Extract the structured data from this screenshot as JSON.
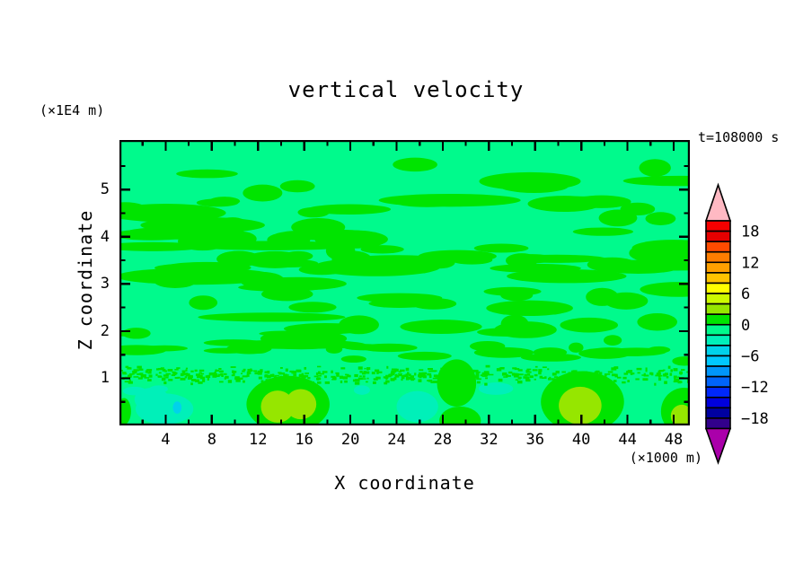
{
  "chart_data": {
    "type": "heatmap",
    "title": "vertical velocity",
    "timestamp": "t=108000 s",
    "xlabel": "X coordinate",
    "x_unit": "(×1000 m)",
    "xlim": [
      0,
      49.4
    ],
    "x_major_ticks": [
      4,
      8,
      12,
      16,
      20,
      24,
      28,
      32,
      36,
      40,
      44,
      48
    ],
    "x_minor_step": 2,
    "ylabel": "Z coordinate",
    "y_unit": "(×1E4 m)",
    "ylim": [
      0,
      6.05
    ],
    "y_major_ticks": [
      1,
      2,
      3,
      4,
      5
    ],
    "y_minor_step": 0.5,
    "grid": false,
    "legend_position": "right-colorbar",
    "colorbar": {
      "level_max": 20,
      "level_min": -20,
      "level_step": 2,
      "labeled_levels": [
        "18",
        "12",
        "6",
        "0",
        "−6",
        "−12",
        "−18"
      ],
      "labeled_boundary_index": [
        1,
        4,
        7,
        10,
        13,
        16,
        19
      ],
      "colors_top_to_bottom": [
        "#f50000",
        "#e60000",
        "#ff4b00",
        "#ff7d00",
        "#ffa000",
        "#ffc300",
        "#ffff00",
        "#cdfa00",
        "#96e600",
        "#00e400",
        "#00fa8c",
        "#00f0b9",
        "#00d2eb",
        "#00c8ff",
        "#0096fa",
        "#0064fa",
        "#0028fa",
        "#0000dc",
        "#0000a0",
        "#32008c"
      ],
      "over_color": "#ffb9c3",
      "under_color": "#aa00aa"
    },
    "field": {
      "background_color": "#00fa8c",
      "background_level_range": "-2 to 0",
      "seed": 77031,
      "streaks": {
        "count": 95,
        "color_index": 9,
        "z_range": [
          1.3,
          5.8
        ]
      },
      "lower_streaks": {
        "count": 30,
        "color_index": 9,
        "z_range": [
          1.3,
          2.0
        ]
      },
      "speckle_band": {
        "count": 520,
        "color_index": 9,
        "z_range": [
          0.88,
          1.3
        ]
      },
      "features": [
        {
          "x": 14.6,
          "z": 0.45,
          "rx": 3.6,
          "rz": 0.6,
          "level": 9
        },
        {
          "x": 40.1,
          "z": 0.5,
          "rx": 3.6,
          "rz": 0.65,
          "level": 9
        },
        {
          "x": 48.9,
          "z": 0.3,
          "rx": 2.0,
          "rz": 0.5,
          "level": 9
        },
        {
          "x": 29.2,
          "z": 0.9,
          "rx": 1.7,
          "rz": 0.5,
          "level": 9
        },
        {
          "x": 29.5,
          "z": 0.1,
          "rx": 1.8,
          "rz": 0.3,
          "level": 9
        },
        {
          "x": 0.4,
          "z": 0.3,
          "rx": 0.6,
          "rz": 0.28,
          "level": 9
        },
        {
          "x": 13.7,
          "z": 0.4,
          "rx": 1.45,
          "rz": 0.34,
          "level": 8
        },
        {
          "x": 15.7,
          "z": 0.45,
          "rx": 1.35,
          "rz": 0.32,
          "level": 8
        },
        {
          "x": 39.9,
          "z": 0.42,
          "rx": 1.85,
          "rz": 0.4,
          "level": 8
        },
        {
          "x": 48.7,
          "z": 0.2,
          "rx": 0.95,
          "rz": 0.24,
          "level": 8
        },
        {
          "x": 3.9,
          "z": 0.35,
          "rx": 2.5,
          "rz": 0.33,
          "level": 11
        },
        {
          "x": 2.8,
          "z": 0.55,
          "rx": 1.5,
          "rz": 0.25,
          "level": 11
        },
        {
          "x": 1.3,
          "z": 0.73,
          "rx": 1.0,
          "rz": 0.09,
          "level": 11
        },
        {
          "x": 3.4,
          "z": 0.77,
          "rx": 0.8,
          "rz": 0.08,
          "level": 11
        },
        {
          "x": 5.0,
          "z": 0.38,
          "rx": 0.38,
          "rz": 0.13,
          "level": 12
        },
        {
          "x": 25.8,
          "z": 0.4,
          "rx": 1.8,
          "rz": 0.33,
          "level": 11
        },
        {
          "x": 32.6,
          "z": 0.78,
          "rx": 1.5,
          "rz": 0.13,
          "level": 11
        },
        {
          "x": 21.0,
          "z": 0.75,
          "rx": 0.7,
          "rz": 0.1,
          "level": 11
        }
      ]
    }
  }
}
